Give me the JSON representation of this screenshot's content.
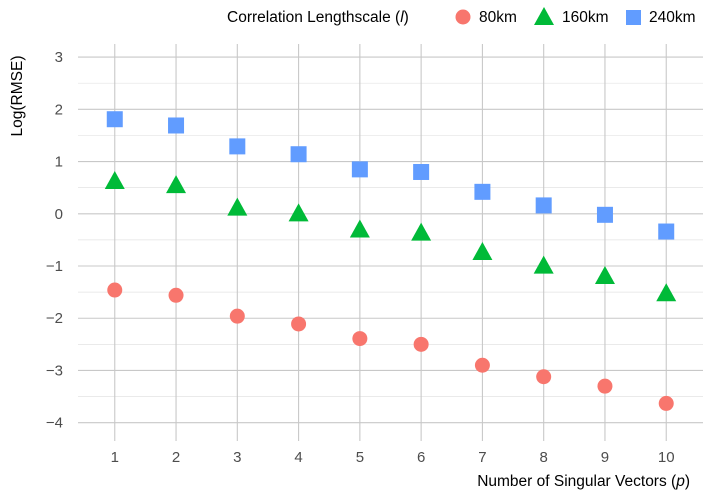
{
  "chart_data": {
    "type": "scatter",
    "title": "",
    "xlabel_main": "Number of Singular Vectors (",
    "xlabel_var": "p",
    "xlabel_close": ")",
    "ylabel": "Log(RMSE)",
    "x": [
      1,
      2,
      3,
      4,
      5,
      6,
      7,
      8,
      9,
      10
    ],
    "xticks": [
      "1",
      "2",
      "3",
      "4",
      "5",
      "6",
      "7",
      "8",
      "9",
      "10"
    ],
    "yticks": [
      "3",
      "2",
      "1",
      "0",
      "−1",
      "−2",
      "−3",
      "−4"
    ],
    "ytick_values": [
      3,
      2,
      1,
      0,
      -1,
      -2,
      -3,
      -4
    ],
    "xlim": [
      0.4,
      10.6
    ],
    "ylim": [
      -4.35,
      3.25
    ],
    "grid": true,
    "legend_position": "top",
    "legend_title_main": "Correlation Lengthscale (",
    "legend_title_var": "l",
    "legend_title_close": ")",
    "series": [
      {
        "name": "80km",
        "marker": "circle",
        "color": "#f8766d",
        "values": [
          -1.46,
          -1.56,
          -1.96,
          -2.11,
          -2.39,
          -2.5,
          -2.9,
          -3.12,
          -3.3,
          -3.63
        ]
      },
      {
        "name": "160km",
        "marker": "triangle",
        "color": "#00ba38",
        "values": [
          0.62,
          0.54,
          0.11,
          0.0,
          -0.31,
          -0.37,
          -0.74,
          -1.0,
          -1.2,
          -1.53
        ]
      },
      {
        "name": "240km",
        "marker": "square",
        "color": "#619cff",
        "values": [
          1.81,
          1.69,
          1.29,
          1.14,
          0.85,
          0.8,
          0.42,
          0.16,
          -0.02,
          -0.34
        ]
      }
    ]
  }
}
